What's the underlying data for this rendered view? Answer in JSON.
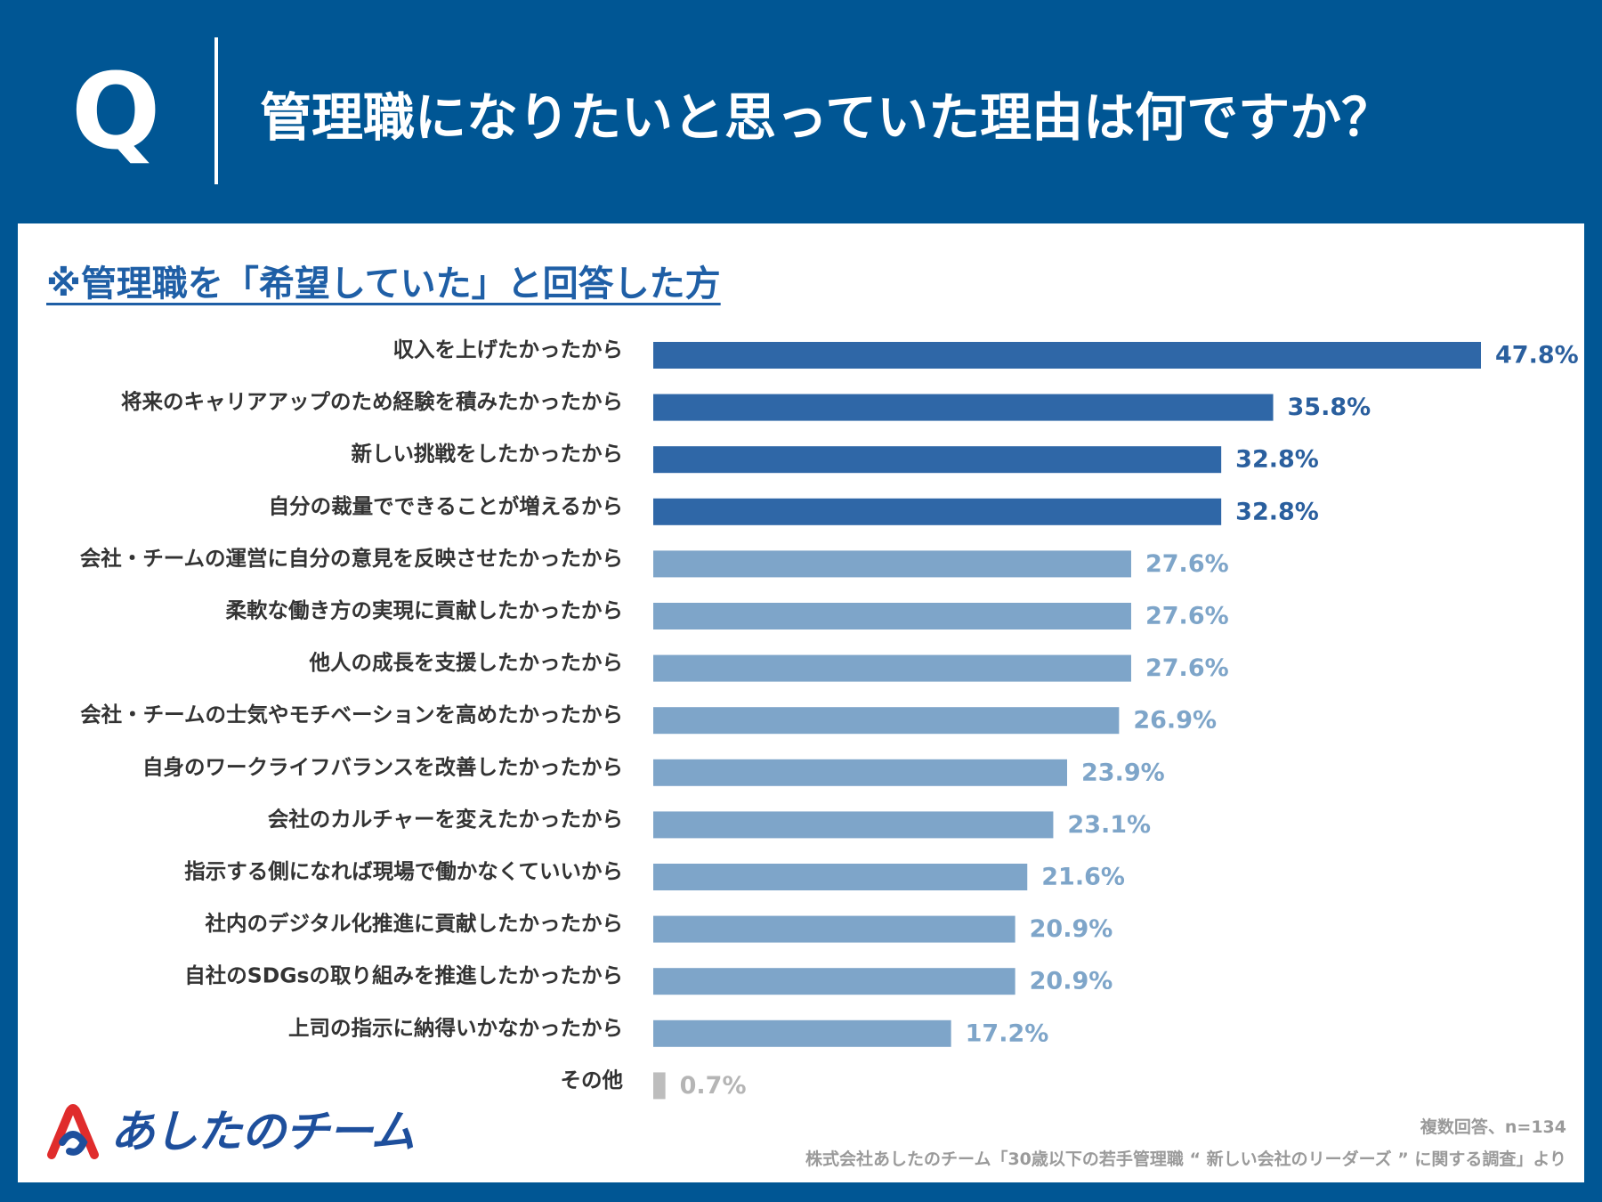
{
  "header": {
    "q_letter": "Q",
    "question": "管理職になりたいと思っていた理由は何ですか？"
  },
  "panel": {
    "subtitle": "※管理職を「希望していた」と回答した方"
  },
  "colors": {
    "background": "#005694",
    "top_bar": "#2f67a7",
    "other_bar": "#7ea5c9",
    "misc_bar": "#bdbdbd",
    "top_label": "#2a5f9e",
    "other_label": "#7ea5c9",
    "misc_label": "#b5b5b5"
  },
  "chart_data": {
    "type": "bar",
    "orientation": "horizontal",
    "title": "管理職になりたいと思っていた理由は何ですか？",
    "unit": "%",
    "xlim": [
      0,
      47.8
    ],
    "categories": [
      "収入を上げたかったから",
      "将来のキャリアアップのため経験を積みたかったから",
      "新しい挑戦をしたかったから",
      "自分の裁量でできることが増えるから",
      "会社・チームの運営に自分の意見を反映させたかったから",
      "柔軟な働き方の実現に貢献したかったから",
      "他人の成長を支援したかったから",
      "会社・チームの士気やモチベーションを高めたかったから",
      "自身のワークライフバランスを改善したかったから",
      "会社のカルチャーを変えたかったから",
      "指示する側になれば現場で働かなくていいから",
      "社内のデジタル化推進に貢献したかったから",
      "自社のSDGsの取り組みを推進したかったから",
      "上司の指示に納得いかなかったから",
      "その他"
    ],
    "values": [
      47.8,
      35.8,
      32.8,
      32.8,
      27.6,
      27.6,
      27.6,
      26.9,
      23.9,
      23.1,
      21.6,
      20.9,
      20.9,
      17.2,
      0.7
    ],
    "value_labels": [
      "47.8%",
      "35.8%",
      "32.8%",
      "32.8%",
      "27.6%",
      "27.6%",
      "27.6%",
      "26.9%",
      "23.9%",
      "23.1%",
      "21.6%",
      "20.9%",
      "20.9%",
      "17.2%",
      "0.7%"
    ],
    "highlight_top_n": 4
  },
  "footer": {
    "logo_text": "あしたのチーム",
    "note": "複数回答、n=134",
    "source": "株式会社あしたのチーム「30歳以下の若手管理職 “ 新しい会社のリーダーズ ” に関する調査」より"
  }
}
